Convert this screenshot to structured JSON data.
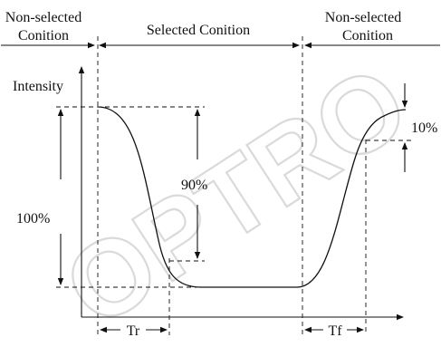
{
  "watermark": "OPTRO",
  "labels": {
    "nonselected_left_line1": "Non-selected",
    "nonselected_left_line2": "Conition",
    "selected": "Selected Conition",
    "nonselected_right_line1": "Non-selected",
    "nonselected_right_line2": "Conition",
    "intensity": "Intensity",
    "percent_100": "100%",
    "percent_90": "90%",
    "percent_10": "10%",
    "tr": "Tr",
    "tf": "Tf"
  }
}
